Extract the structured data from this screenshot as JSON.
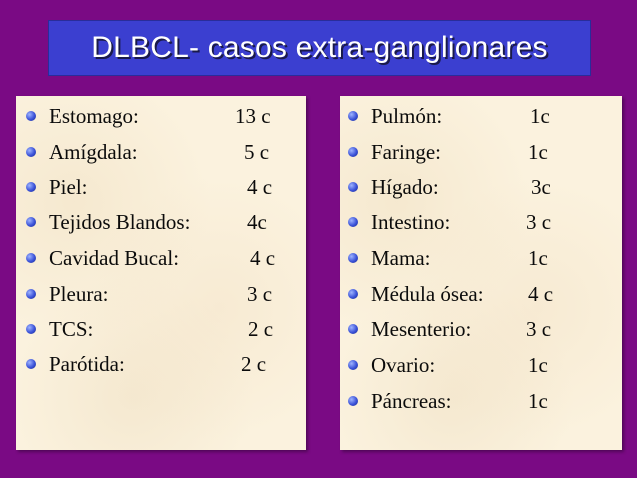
{
  "title": "DLBCL- casos extra-ganglionares",
  "left_list": [
    {
      "label": "Estomago:",
      "value": "13 c"
    },
    {
      "label": "Amígdala:",
      "value": "5 c"
    },
    {
      "label": "Piel:",
      "value": "4 c"
    },
    {
      "label": "Tejidos Blandos:",
      "value": "4c"
    },
    {
      "label": "Cavidad Bucal:",
      "value": "4 c"
    },
    {
      "label": "Pleura:",
      "value": "3 c"
    },
    {
      "label": "TCS:",
      "value": "2 c"
    },
    {
      "label": "Parótida:",
      "value": "2 c"
    }
  ],
  "right_list": [
    {
      "label": "Pulmón:",
      "value": "1c"
    },
    {
      "label": "Faringe:",
      "value": "1c"
    },
    {
      "label": "Hígado:",
      "value": "3c"
    },
    {
      "label": "Intestino:",
      "value": "3 c"
    },
    {
      "label": "Mama:",
      "value": "1c"
    },
    {
      "label": "Médula ósea:",
      "value": "4 c"
    },
    {
      "label": "Mesenterio:",
      "value": "3 c"
    },
    {
      "label": "Ovario:",
      "value": "1c"
    },
    {
      "label": "Páncreas:",
      "value": "1c"
    }
  ],
  "colors": {
    "background": "#7a0a84",
    "title_box": "#3b3fd0",
    "panel": "#fbf2de",
    "bullet": "#3a52d8"
  }
}
